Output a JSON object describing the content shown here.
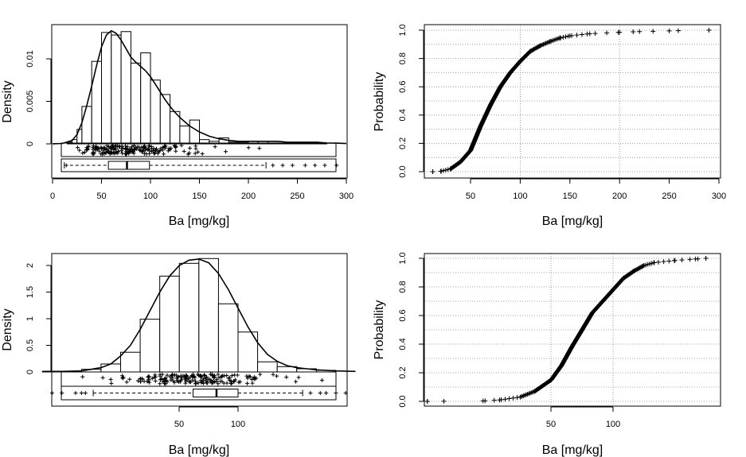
{
  "chart_data": [
    {
      "type": "histogram",
      "panel": "top-left",
      "xlabel": "Ba [mg/kg]",
      "ylabel": "Density",
      "xlim": [
        0,
        300
      ],
      "ylim": [
        0,
        0.0135
      ],
      "x_ticks": [
        0,
        50,
        100,
        150,
        200,
        250,
        300
      ],
      "y_ticks": [
        0,
        0.005,
        0.01
      ],
      "y_tick_labels": [
        "0",
        "0.005",
        "0.01"
      ],
      "bins": [
        {
          "x0": 15,
          "x1": 20,
          "density": 0.0002
        },
        {
          "x0": 20,
          "x1": 25,
          "density": 0.0005
        },
        {
          "x0": 25,
          "x1": 30,
          "density": 0.0017
        },
        {
          "x0": 30,
          "x1": 40,
          "density": 0.0044
        },
        {
          "x0": 40,
          "x1": 50,
          "density": 0.0097
        },
        {
          "x0": 50,
          "x1": 60,
          "density": 0.0131
        },
        {
          "x0": 60,
          "x1": 70,
          "density": 0.0128
        },
        {
          "x0": 70,
          "x1": 80,
          "density": 0.0132
        },
        {
          "x0": 80,
          "x1": 90,
          "density": 0.0095
        },
        {
          "x0": 90,
          "x1": 100,
          "density": 0.0107
        },
        {
          "x0": 100,
          "x1": 110,
          "density": 0.0075
        },
        {
          "x0": 110,
          "x1": 120,
          "density": 0.0058
        },
        {
          "x0": 120,
          "x1": 130,
          "density": 0.0038
        },
        {
          "x0": 130,
          "x1": 140,
          "density": 0.0021
        },
        {
          "x0": 140,
          "x1": 150,
          "density": 0.0028
        },
        {
          "x0": 150,
          "x1": 160,
          "density": 0.0005
        },
        {
          "x0": 160,
          "x1": 170,
          "density": 0.0003
        },
        {
          "x0": 170,
          "x1": 180,
          "density": 0.0007
        },
        {
          "x0": 180,
          "x1": 190,
          "density": 0.0002
        },
        {
          "x0": 190,
          "x1": 200,
          "density": 0.0002
        },
        {
          "x0": 200,
          "x1": 210,
          "density": 0.0003
        },
        {
          "x0": 210,
          "x1": 220,
          "density": 0.0003
        },
        {
          "x0": 220,
          "x1": 230,
          "density": 0.0001
        },
        {
          "x0": 230,
          "x1": 240,
          "density": 0.0001
        },
        {
          "x0": 240,
          "x1": 250,
          "density": 0.0001
        },
        {
          "x0": 250,
          "x1": 260,
          "density": 0.0001
        },
        {
          "x0": 260,
          "x1": 270,
          "density": 0.0001
        },
        {
          "x0": 270,
          "x1": 280,
          "density": 0.0001
        }
      ],
      "density_curve": {
        "x": [
          0,
          10,
          20,
          25,
          30,
          35,
          40,
          45,
          50,
          55,
          60,
          65,
          70,
          75,
          80,
          85,
          90,
          95,
          100,
          105,
          110,
          115,
          120,
          125,
          130,
          140,
          150,
          160,
          170,
          180,
          190,
          200,
          210,
          220,
          230,
          240,
          250,
          260,
          270,
          280,
          290,
          300
        ],
        "y": [
          1e-05,
          5e-05,
          0.0004,
          0.0011,
          0.0025,
          0.0045,
          0.0068,
          0.0092,
          0.0114,
          0.0128,
          0.0133,
          0.013,
          0.0122,
          0.0112,
          0.0102,
          0.0096,
          0.0091,
          0.0086,
          0.0079,
          0.007,
          0.0061,
          0.0052,
          0.0044,
          0.0037,
          0.0031,
          0.0021,
          0.0014,
          0.0009,
          0.0006,
          0.0004,
          0.0003,
          0.0003,
          0.0003,
          0.0003,
          0.0003,
          0.0002,
          0.0002,
          0.0002,
          0.0002,
          0.0001,
          8e-05,
          4e-05
        ]
      },
      "boxplot": {
        "whisker_low": 12,
        "q1": 57,
        "median": 76,
        "q3": 99,
        "whisker_high": 218,
        "outliers": [
          14,
          225,
          235,
          245,
          258,
          268,
          278,
          290
        ]
      }
    },
    {
      "type": "ecdf",
      "panel": "top-right",
      "xlabel": "Ba [mg/kg]",
      "ylabel": "Probability",
      "xlim": [
        0,
        300
      ],
      "ylim": [
        0,
        1
      ],
      "x_ticks": [
        50,
        100,
        150,
        200,
        250,
        300
      ],
      "y_ticks": [
        0,
        0.2,
        0.4,
        0.6,
        0.8,
        1
      ],
      "y_tick_labels": [
        "0.0",
        "0.2",
        "0.4",
        "0.6",
        "0.8",
        "1.0"
      ],
      "grid": true,
      "cdf_points": [
        [
          12,
          0.0
        ],
        [
          20,
          0.003
        ],
        [
          30,
          0.02
        ],
        [
          40,
          0.07
        ],
        [
          50,
          0.15
        ],
        [
          60,
          0.32
        ],
        [
          70,
          0.47
        ],
        [
          80,
          0.6
        ],
        [
          90,
          0.7
        ],
        [
          100,
          0.78
        ],
        [
          110,
          0.85
        ],
        [
          120,
          0.89
        ],
        [
          130,
          0.92
        ],
        [
          140,
          0.945
        ],
        [
          150,
          0.96
        ],
        [
          170,
          0.975
        ],
        [
          200,
          0.985
        ],
        [
          220,
          0.99
        ],
        [
          250,
          0.995
        ],
        [
          290,
          1.0
        ]
      ]
    },
    {
      "type": "histogram",
      "panel": "bottom-left",
      "xlabel": "Ba [mg/kg]",
      "ylabel": "Density",
      "x_scale": "log10",
      "xlim_log10": [
        1.0,
        2.6
      ],
      "ylim": [
        0,
        2.2
      ],
      "x_ticks": [
        50,
        100
      ],
      "y_ticks": [
        0,
        0.5,
        1,
        1.5,
        2
      ],
      "y_tick_labels": [
        "0",
        "0.5",
        "1",
        "1.5",
        "2"
      ],
      "bins": [
        {
          "x0": 1.0,
          "x1": 1.1,
          "density": 0.01
        },
        {
          "x0": 1.1,
          "x1": 1.2,
          "density": 0.01
        },
        {
          "x0": 1.2,
          "x1": 1.3,
          "density": 0.05
        },
        {
          "x0": 1.3,
          "x1": 1.4,
          "density": 0.15
        },
        {
          "x0": 1.4,
          "x1": 1.5,
          "density": 0.37
        },
        {
          "x0": 1.5,
          "x1": 1.6,
          "density": 0.99
        },
        {
          "x0": 1.6,
          "x1": 1.7,
          "density": 1.8
        },
        {
          "x0": 1.7,
          "x1": 1.8,
          "density": 2.04
        },
        {
          "x0": 1.8,
          "x1": 1.9,
          "density": 2.13
        },
        {
          "x0": 1.9,
          "x1": 2.0,
          "density": 1.28
        },
        {
          "x0": 2.0,
          "x1": 2.1,
          "density": 0.75
        },
        {
          "x0": 2.1,
          "x1": 2.2,
          "density": 0.19
        },
        {
          "x0": 2.2,
          "x1": 2.3,
          "density": 0.1
        },
        {
          "x0": 2.3,
          "x1": 2.4,
          "density": 0.06
        },
        {
          "x0": 2.4,
          "x1": 2.5,
          "density": 0.03
        }
      ],
      "density_curve": {
        "x": [
          1.0,
          1.1,
          1.2,
          1.3,
          1.35,
          1.4,
          1.45,
          1.5,
          1.55,
          1.6,
          1.65,
          1.7,
          1.75,
          1.8,
          1.85,
          1.9,
          1.95,
          2.0,
          2.05,
          2.1,
          2.15,
          2.2,
          2.25,
          2.3,
          2.35,
          2.4,
          2.5,
          2.6
        ],
        "y": [
          0.01,
          0.01,
          0.02,
          0.08,
          0.15,
          0.3,
          0.5,
          0.8,
          1.15,
          1.5,
          1.8,
          2.0,
          2.1,
          2.12,
          2.05,
          1.85,
          1.55,
          1.2,
          0.85,
          0.55,
          0.33,
          0.2,
          0.12,
          0.08,
          0.06,
          0.04,
          0.02,
          0.01
        ]
      },
      "boxplot": {
        "whisker_low": 1.26,
        "q1": 1.77,
        "median": 1.89,
        "q3": 2.0,
        "whisker_high": 2.33,
        "outliers": [
          1.05,
          1.1,
          1.17,
          1.2,
          1.22,
          2.37,
          2.42,
          2.45,
          2.5,
          2.55
        ]
      }
    },
    {
      "type": "ecdf",
      "panel": "bottom-right",
      "xlabel": "Ba [mg/kg]",
      "ylabel": "Probability",
      "x_scale": "log10",
      "xlim_log10": [
        1.0,
        2.5
      ],
      "ylim": [
        0,
        1
      ],
      "x_ticks": [
        50,
        100
      ],
      "y_ticks": [
        0,
        0.2,
        0.4,
        0.6,
        0.8,
        1
      ],
      "y_tick_labels": [
        "0.0",
        "0.2",
        "0.4",
        "0.6",
        "0.8",
        "1.0"
      ],
      "grid": true,
      "cdf_points": [
        [
          1.1,
          0.0
        ],
        [
          1.18,
          0.001
        ],
        [
          1.37,
          0.003
        ],
        [
          1.45,
          0.01
        ],
        [
          1.55,
          0.03
        ],
        [
          1.62,
          0.07
        ],
        [
          1.7,
          0.15
        ],
        [
          1.75,
          0.25
        ],
        [
          1.8,
          0.38
        ],
        [
          1.85,
          0.5
        ],
        [
          1.9,
          0.62
        ],
        [
          1.95,
          0.7
        ],
        [
          2.0,
          0.78
        ],
        [
          2.05,
          0.86
        ],
        [
          2.1,
          0.91
        ],
        [
          2.15,
          0.95
        ],
        [
          2.2,
          0.97
        ],
        [
          2.3,
          0.985
        ],
        [
          2.4,
          0.995
        ],
        [
          2.45,
          1.0
        ]
      ]
    }
  ]
}
